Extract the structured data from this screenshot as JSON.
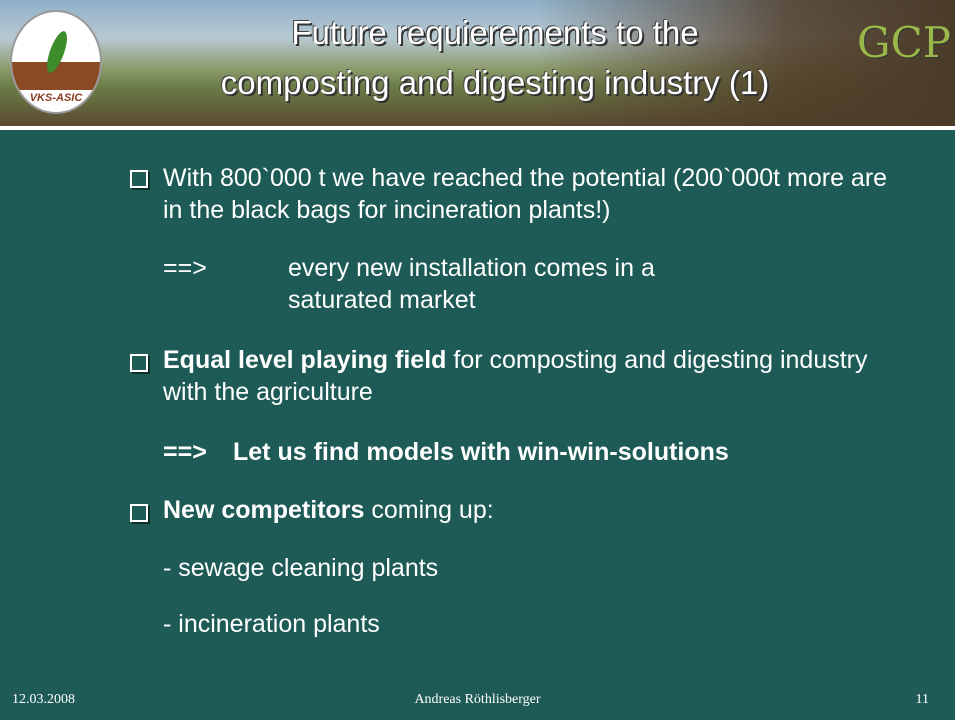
{
  "header": {
    "title_lines": [
      "Future requierements to the",
      "composting and digesting industry (1)"
    ],
    "left_logo": "VKS-ASIC",
    "right_logo": "GCP"
  },
  "body": {
    "item1": {
      "text": "With 800`000 t we have reached the potential (200`000t more are in the black bags for incineration plants!)",
      "arrow": "==>",
      "arrow_text": "every new installation comes in a saturated market"
    },
    "item2": {
      "bold": "Equal level playing field",
      "text": "for composting and digesting industry with the agriculture",
      "arrow": "==>",
      "arrow_text": "Let us find models with win-win-solutions"
    },
    "item3": {
      "bold": "New competitors",
      "text": "coming up:",
      "subitems": [
        "- sewage cleaning plants",
        "- incineration plants"
      ]
    }
  },
  "footer": {
    "date": "12.03.2008",
    "author": "Andreas Röthlisberger",
    "page": "11"
  }
}
